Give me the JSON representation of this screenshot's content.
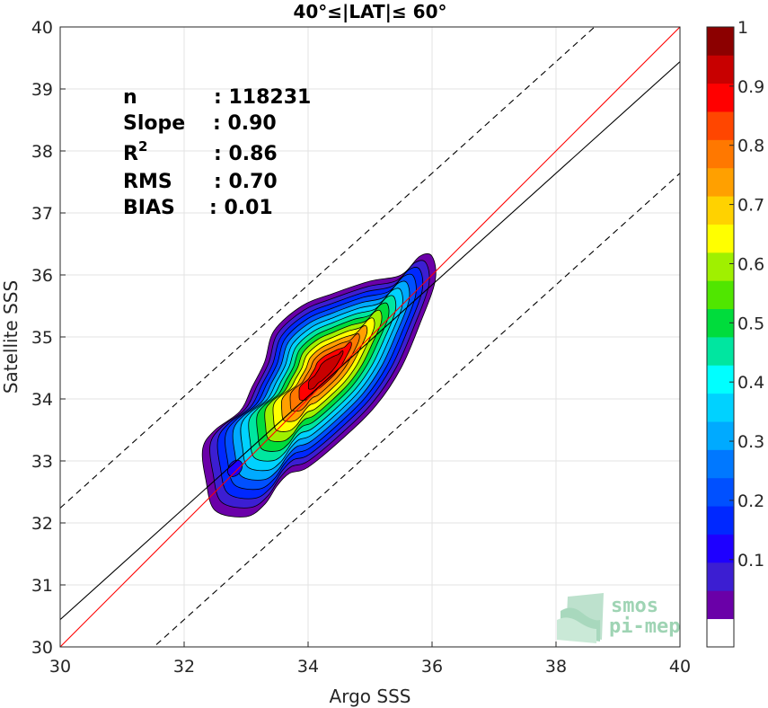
{
  "chart_data": {
    "type": "contour-density",
    "title": "40°≤|LAT|≤ 60°",
    "xlabel": "Argo SSS",
    "ylabel": "Satellite SSS",
    "xlim": [
      30,
      40
    ],
    "ylim": [
      30,
      40
    ],
    "xticks": [
      30,
      32,
      34,
      36,
      38,
      40
    ],
    "yticks": [
      30,
      31,
      32,
      33,
      34,
      35,
      36,
      37,
      38,
      39,
      40
    ],
    "grid": true,
    "stats": [
      {
        "key": "n",
        "value": ": 118231"
      },
      {
        "key": "Slope",
        "value": ": 0.90"
      },
      {
        "key": "R",
        "sup": "2",
        "value": ": 0.86"
      },
      {
        "key": "RMS",
        "value": ": 0.70"
      },
      {
        "key": "BIAS",
        "value": ": 0.01"
      }
    ],
    "lines": [
      {
        "name": "one-to-one",
        "color": "#ff0000",
        "style": "solid",
        "slope": 1.0,
        "intercept": 0.0
      },
      {
        "name": "regression",
        "color": "#000000",
        "style": "solid",
        "slope": 0.9,
        "intercept": 3.44
      },
      {
        "name": "upper-bound",
        "color": "#000000",
        "style": "dashed",
        "slope": 0.9,
        "intercept": 5.24
      },
      {
        "name": "lower-bound",
        "color": "#000000",
        "style": "dashed",
        "slope": 0.9,
        "intercept": 1.64
      }
    ],
    "density_peak": {
      "x": 34.3,
      "y": 34.5
    },
    "colorbar": {
      "range": [
        0,
        1
      ],
      "levels": [
        0,
        0.05,
        0.1,
        0.15,
        0.2,
        0.25,
        0.3,
        0.35,
        0.4,
        0.45,
        0.5,
        0.55,
        0.6,
        0.65,
        0.7,
        0.75,
        0.8,
        0.85,
        0.9,
        0.95,
        1
      ],
      "tick_values": [
        0.1,
        0.2,
        0.3,
        0.4,
        0.5,
        0.6,
        0.7,
        0.8,
        0.9,
        1
      ],
      "tick_labels": [
        "0.1",
        "0.2",
        "0.3",
        "0.4",
        "0.5",
        "0.6",
        "0.7",
        "0.8",
        "0.9",
        "1"
      ],
      "colors": [
        "#ffffff",
        "#6a00a8",
        "#3c1ed2",
        "#1e00ff",
        "#0028ff",
        "#0050ff",
        "#0078ff",
        "#00aaff",
        "#00d2ff",
        "#00ffff",
        "#00e6a0",
        "#00dc3c",
        "#50e600",
        "#a0f000",
        "#ffff00",
        "#ffd200",
        "#ffa000",
        "#ff7800",
        "#ff4600",
        "#ff0000",
        "#c80000",
        "#8c0000"
      ]
    }
  },
  "logo": {
    "line1": "smos",
    "line2": "pi-mep"
  }
}
